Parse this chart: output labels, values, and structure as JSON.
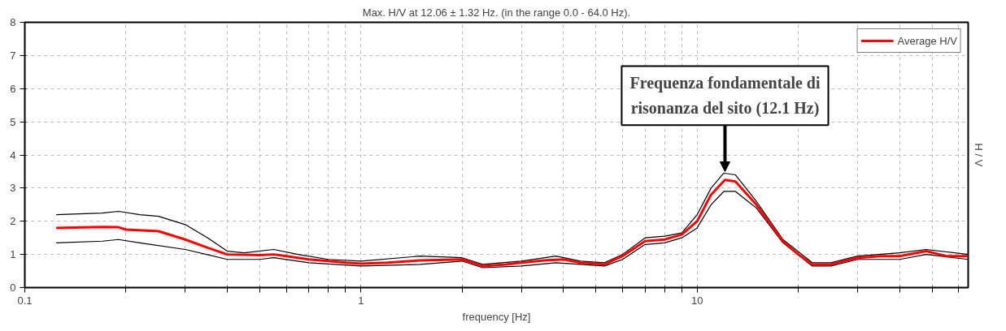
{
  "chart_data": {
    "type": "line",
    "title": "Max. H/V at 12.06 ± 1.32 Hz. (in the range 0.0 - 64.0 Hz).",
    "xlabel": "frequency [Hz]",
    "ylabel": "H / V",
    "log": "x",
    "grid": true,
    "legend": "top right",
    "line_style": "solid",
    "marker": "none",
    "xlim": [
      0.1,
      64
    ],
    "ylim": [
      0,
      8
    ],
    "xticks": [
      0.1,
      {
        "value": 0.2,
        "label": null
      },
      {
        "value": 0.3,
        "label": null
      },
      {
        "value": 0.4,
        "label": null
      },
      {
        "value": 0.5,
        "label": null
      },
      {
        "value": 0.6,
        "label": null
      },
      {
        "value": 0.7,
        "label": null
      },
      {
        "value": 0.8,
        "label": null
      },
      {
        "value": 0.9,
        "label": null
      },
      1,
      {
        "value": 2,
        "label": null
      },
      {
        "value": 3,
        "label": null
      },
      {
        "value": 4,
        "label": null
      },
      {
        "value": 5,
        "label": null
      },
      {
        "value": 6,
        "label": null
      },
      {
        "value": 7,
        "label": null
      },
      {
        "value": 8,
        "label": null
      },
      {
        "value": 9,
        "label": null
      },
      10,
      {
        "value": 20,
        "label": null
      },
      {
        "value": 30,
        "label": null
      },
      {
        "value": 40,
        "label": null
      },
      {
        "value": 50,
        "label": null
      },
      {
        "value": 60,
        "label": null
      }
    ],
    "yticks": [
      0,
      1,
      2,
      3,
      4,
      5,
      6,
      7,
      8
    ],
    "series": [
      {
        "color": "#000000",
        "x": [
          0.124,
          0.17,
          0.19,
          0.22,
          0.25,
          0.3,
          0.35,
          0.4,
          0.45,
          0.55,
          0.65,
          0.8,
          1.0,
          1.5,
          2.0,
          2.3,
          3,
          3.8,
          4.5,
          5.3,
          6,
          7,
          8,
          9,
          10,
          11,
          12,
          13,
          15,
          18,
          22,
          25,
          30,
          40,
          48,
          64
        ],
        "values": [
          2.2,
          2.25,
          2.3,
          2.2,
          2.15,
          1.9,
          1.5,
          1.1,
          1.05,
          1.15,
          1.0,
          0.85,
          0.8,
          0.95,
          0.9,
          0.7,
          0.8,
          0.95,
          0.8,
          0.75,
          1.0,
          1.5,
          1.55,
          1.65,
          2.2,
          3.0,
          3.45,
          3.4,
          2.6,
          1.45,
          0.75,
          0.75,
          0.95,
          1.05,
          1.15,
          1.0
        ]
      },
      {
        "color": "#000000",
        "x": [
          0.124,
          0.17,
          0.19,
          0.22,
          0.3,
          0.4,
          0.5,
          0.55,
          0.7,
          1.0,
          1.5,
          2.0,
          2.3,
          3,
          3.8,
          4.5,
          5.3,
          6,
          7,
          8,
          9,
          10,
          11,
          12,
          13,
          15,
          18,
          22,
          25,
          30,
          40,
          48,
          64
        ],
        "values": [
          1.35,
          1.4,
          1.45,
          1.35,
          1.15,
          0.85,
          0.85,
          0.9,
          0.75,
          0.65,
          0.7,
          0.8,
          0.6,
          0.65,
          0.75,
          0.7,
          0.65,
          0.85,
          1.3,
          1.35,
          1.5,
          1.8,
          2.5,
          2.9,
          2.9,
          2.4,
          1.35,
          0.65,
          0.65,
          0.85,
          0.85,
          1.0,
          0.85
        ]
      },
      {
        "name": "Average H/V",
        "color": "#ff0000",
        "x": [
          0.124,
          0.17,
          0.19,
          0.2,
          0.25,
          0.3,
          0.35,
          0.4,
          0.5,
          0.55,
          0.6,
          0.7,
          0.8,
          0.9,
          1.0,
          1.2,
          1.5,
          2.0,
          2.3,
          2.7,
          3,
          3.5,
          4,
          4.5,
          5,
          5.3,
          6,
          7,
          8,
          9,
          10,
          11,
          12.1,
          13,
          15,
          18,
          20,
          22,
          25,
          30,
          35,
          40,
          48,
          55,
          64
        ],
        "values": [
          1.8,
          1.83,
          1.82,
          1.75,
          1.7,
          1.45,
          1.2,
          1.0,
          0.98,
          1.0,
          0.95,
          0.85,
          0.8,
          0.75,
          0.72,
          0.75,
          0.82,
          0.85,
          0.65,
          0.7,
          0.75,
          0.82,
          0.85,
          0.75,
          0.72,
          0.7,
          0.95,
          1.4,
          1.45,
          1.6,
          2.0,
          2.8,
          3.25,
          3.2,
          2.5,
          1.4,
          1.0,
          0.7,
          0.7,
          0.9,
          0.95,
          0.95,
          1.1,
          0.95,
          0.95
        ]
      }
    ],
    "annotations": [
      {
        "text": "Frequenza fondamentale di\nrisonanza del sito (12.1 Hz)",
        "x": 12.1,
        "y": 3.5
      }
    ]
  }
}
